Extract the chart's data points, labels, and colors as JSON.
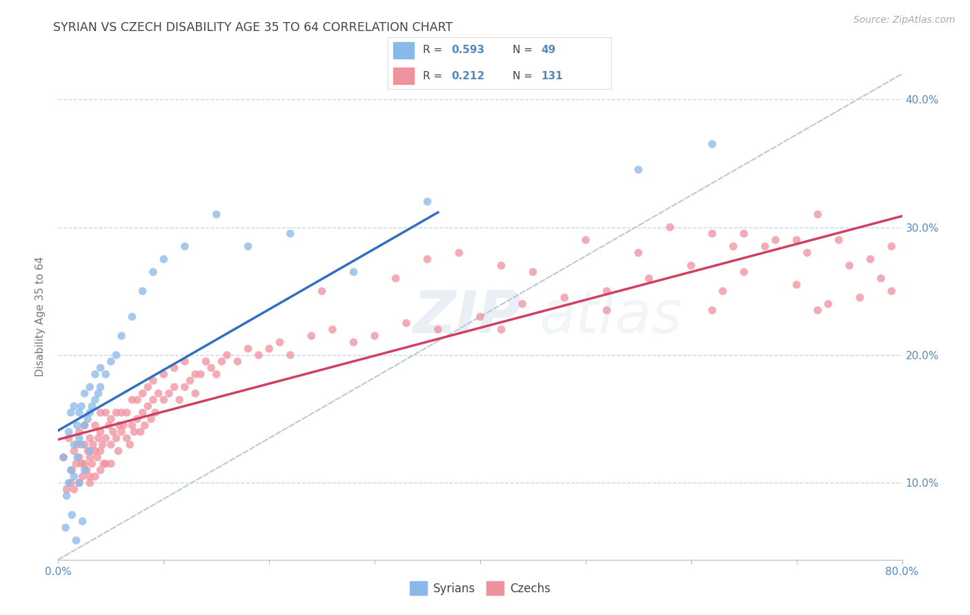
{
  "title": "SYRIAN VS CZECH DISABILITY AGE 35 TO 64 CORRELATION CHART",
  "source_text": "Source: ZipAtlas.com",
  "ylabel": "Disability Age 35 to 64",
  "xlim": [
    0.0,
    0.8
  ],
  "ylim": [
    0.04,
    0.42
  ],
  "syrians_color": "#8ab8e8",
  "czechs_color": "#f0919e",
  "trend_blue": "#3070c0",
  "trend_pink": "#d04060",
  "ref_line_color": "#b8c8d8",
  "background_color": "#ffffff",
  "grid_color": "#c8d8e8",
  "axis_color": "#5588bb",
  "title_color": "#444444",
  "watermark_color": "#c8d8e8",
  "syrians_x": [
    0.005,
    0.008,
    0.01,
    0.01,
    0.012,
    0.012,
    0.015,
    0.015,
    0.015,
    0.018,
    0.018,
    0.02,
    0.02,
    0.02,
    0.022,
    0.022,
    0.025,
    0.025,
    0.025,
    0.028,
    0.03,
    0.03,
    0.03,
    0.032,
    0.035,
    0.035,
    0.038,
    0.04,
    0.04,
    0.045,
    0.05,
    0.055,
    0.06,
    0.07,
    0.08,
    0.09,
    0.1,
    0.12,
    0.15,
    0.18,
    0.22,
    0.28,
    0.35,
    0.55,
    0.62,
    0.007,
    0.013,
    0.017,
    0.023
  ],
  "syrians_y": [
    0.12,
    0.09,
    0.14,
    0.1,
    0.11,
    0.155,
    0.13,
    0.105,
    0.16,
    0.12,
    0.145,
    0.135,
    0.155,
    0.1,
    0.13,
    0.16,
    0.145,
    0.17,
    0.11,
    0.15,
    0.155,
    0.175,
    0.125,
    0.16,
    0.165,
    0.185,
    0.17,
    0.175,
    0.19,
    0.185,
    0.195,
    0.2,
    0.215,
    0.23,
    0.25,
    0.265,
    0.275,
    0.285,
    0.31,
    0.285,
    0.295,
    0.265,
    0.32,
    0.345,
    0.365,
    0.065,
    0.075,
    0.055,
    0.07
  ],
  "czechs_x": [
    0.005,
    0.008,
    0.01,
    0.012,
    0.013,
    0.015,
    0.015,
    0.017,
    0.018,
    0.02,
    0.02,
    0.02,
    0.022,
    0.023,
    0.025,
    0.025,
    0.025,
    0.027,
    0.028,
    0.03,
    0.03,
    0.03,
    0.03,
    0.032,
    0.033,
    0.035,
    0.035,
    0.035,
    0.037,
    0.038,
    0.04,
    0.04,
    0.04,
    0.04,
    0.042,
    0.043,
    0.045,
    0.045,
    0.045,
    0.048,
    0.05,
    0.05,
    0.05,
    0.052,
    0.055,
    0.055,
    0.057,
    0.058,
    0.06,
    0.06,
    0.062,
    0.065,
    0.065,
    0.068,
    0.07,
    0.07,
    0.072,
    0.075,
    0.075,
    0.078,
    0.08,
    0.08,
    0.082,
    0.085,
    0.085,
    0.088,
    0.09,
    0.09,
    0.092,
    0.095,
    0.1,
    0.1,
    0.105,
    0.11,
    0.11,
    0.115,
    0.12,
    0.12,
    0.125,
    0.13,
    0.13,
    0.135,
    0.14,
    0.145,
    0.15,
    0.155,
    0.16,
    0.17,
    0.18,
    0.19,
    0.2,
    0.21,
    0.22,
    0.24,
    0.26,
    0.28,
    0.3,
    0.33,
    0.36,
    0.4,
    0.44,
    0.48,
    0.52,
    0.56,
    0.6,
    0.65,
    0.7,
    0.32,
    0.38,
    0.42,
    0.5,
    0.58,
    0.64,
    0.68,
    0.72,
    0.25,
    0.35,
    0.45,
    0.55,
    0.62,
    0.67,
    0.71,
    0.74,
    0.77,
    0.79,
    0.42,
    0.52,
    0.63,
    0.73,
    0.78,
    0.62,
    0.7,
    0.75,
    0.79,
    0.65,
    0.72,
    0.76
  ],
  "czechs_y": [
    0.12,
    0.095,
    0.135,
    0.1,
    0.11,
    0.125,
    0.095,
    0.115,
    0.13,
    0.1,
    0.12,
    0.14,
    0.115,
    0.105,
    0.13,
    0.115,
    0.145,
    0.11,
    0.125,
    0.12,
    0.1,
    0.135,
    0.105,
    0.115,
    0.13,
    0.125,
    0.145,
    0.105,
    0.12,
    0.135,
    0.125,
    0.14,
    0.11,
    0.155,
    0.13,
    0.115,
    0.135,
    0.155,
    0.115,
    0.145,
    0.13,
    0.15,
    0.115,
    0.14,
    0.135,
    0.155,
    0.125,
    0.145,
    0.14,
    0.155,
    0.145,
    0.135,
    0.155,
    0.13,
    0.145,
    0.165,
    0.14,
    0.15,
    0.165,
    0.14,
    0.155,
    0.17,
    0.145,
    0.16,
    0.175,
    0.15,
    0.165,
    0.18,
    0.155,
    0.17,
    0.165,
    0.185,
    0.17,
    0.175,
    0.19,
    0.165,
    0.175,
    0.195,
    0.18,
    0.185,
    0.17,
    0.185,
    0.195,
    0.19,
    0.185,
    0.195,
    0.2,
    0.195,
    0.205,
    0.2,
    0.205,
    0.21,
    0.2,
    0.215,
    0.22,
    0.21,
    0.215,
    0.225,
    0.22,
    0.23,
    0.24,
    0.245,
    0.25,
    0.26,
    0.27,
    0.295,
    0.29,
    0.26,
    0.28,
    0.27,
    0.29,
    0.3,
    0.285,
    0.29,
    0.31,
    0.25,
    0.275,
    0.265,
    0.28,
    0.295,
    0.285,
    0.28,
    0.29,
    0.275,
    0.285,
    0.22,
    0.235,
    0.25,
    0.24,
    0.26,
    0.235,
    0.255,
    0.27,
    0.25,
    0.265,
    0.235,
    0.245
  ]
}
